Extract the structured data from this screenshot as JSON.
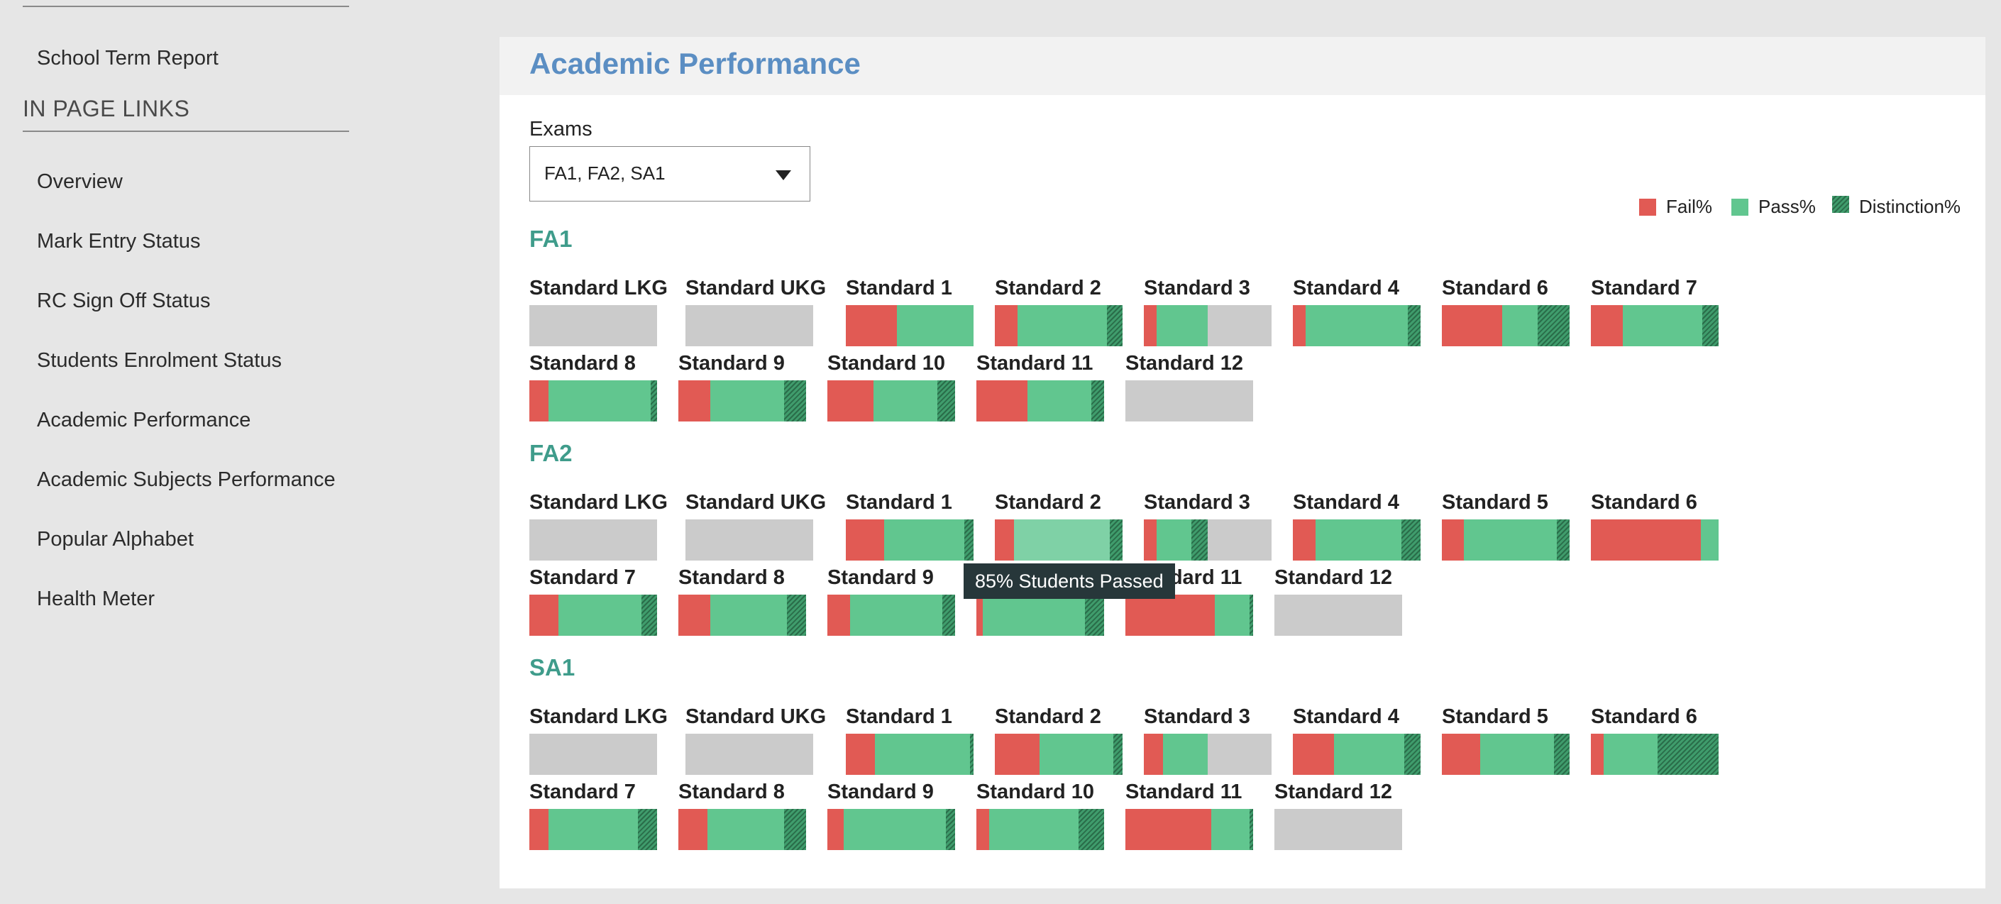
{
  "sidebar": {
    "school_term_report": "School Term Report",
    "in_page_heading": "IN PAGE LINKS",
    "links": [
      "Overview",
      "Mark Entry Status",
      "RC Sign Off Status",
      "Students Enrolment Status",
      "Academic Performance",
      "Academic Subjects Performance",
      "Popular Alphabet",
      "Health Meter"
    ]
  },
  "panel": {
    "title": "Academic Performance",
    "exams_label": "Exams",
    "exams_value": "FA1, FA2, SA1"
  },
  "legend": {
    "fail": "Fail%",
    "pass": "Pass%",
    "distinction": "Distinction%"
  },
  "colors": {
    "fail": "#e15a54",
    "pass": "#61c68f",
    "distinction": "#3f9c6c",
    "no_data": "#cbcbcb",
    "title": "#5b8ec3",
    "section": "#3f9c8b"
  },
  "tooltip": {
    "text": "85% Students Passed"
  },
  "sections": [
    {
      "name": "FA1",
      "standards": [
        {
          "label": "Standard LKG",
          "fail": 0,
          "pass": 0,
          "distinction": 0
        },
        {
          "label": "Standard UKG",
          "fail": 0,
          "pass": 0,
          "distinction": 0
        },
        {
          "label": "Standard 1",
          "fail": 40,
          "pass": 60,
          "distinction": 0
        },
        {
          "label": "Standard 2",
          "fail": 18,
          "pass": 70,
          "distinction": 12
        },
        {
          "label": "Standard 3",
          "fail": 10,
          "pass": 40,
          "distinction": 0
        },
        {
          "label": "Standard 4",
          "fail": 10,
          "pass": 80,
          "distinction": 10
        },
        {
          "label": "Standard 6",
          "fail": 47,
          "pass": 28,
          "distinction": 25
        },
        {
          "label": "Standard 7",
          "fail": 25,
          "pass": 62,
          "distinction": 13
        },
        {
          "label": "Standard 8",
          "fail": 15,
          "pass": 80,
          "distinction": 5
        },
        {
          "label": "Standard 9",
          "fail": 25,
          "pass": 58,
          "distinction": 17
        },
        {
          "label": "Standard 10",
          "fail": 36,
          "pass": 50,
          "distinction": 14
        },
        {
          "label": "Standard 11",
          "fail": 40,
          "pass": 50,
          "distinction": 10
        },
        {
          "label": "Standard 12",
          "fail": 0,
          "pass": 0,
          "distinction": 0
        }
      ]
    },
    {
      "name": "FA2",
      "standards": [
        {
          "label": "Standard LKG",
          "fail": 0,
          "pass": 0,
          "distinction": 0
        },
        {
          "label": "Standard UKG",
          "fail": 0,
          "pass": 0,
          "distinction": 0
        },
        {
          "label": "Standard 1",
          "fail": 30,
          "pass": 63,
          "distinction": 7
        },
        {
          "label": "Standard 2",
          "fail": 15,
          "pass": 75,
          "distinction": 10
        },
        {
          "label": "Standard 3",
          "fail": 10,
          "pass": 27,
          "distinction": 13
        },
        {
          "label": "Standard 4",
          "fail": 18,
          "pass": 67,
          "distinction": 15
        },
        {
          "label": "Standard 5",
          "fail": 17,
          "pass": 73,
          "distinction": 10
        },
        {
          "label": "Standard 6",
          "fail": 86,
          "pass": 14,
          "distinction": 0
        },
        {
          "label": "Standard 7",
          "fail": 23,
          "pass": 65,
          "distinction": 12
        },
        {
          "label": "Standard 8",
          "fail": 25,
          "pass": 60,
          "distinction": 15
        },
        {
          "label": "Standard 9",
          "fail": 18,
          "pass": 72,
          "distinction": 10
        },
        {
          "label": "Standard 10",
          "fail": 5,
          "pass": 80,
          "distinction": 15
        },
        {
          "label": "Standard 11",
          "fail": 70,
          "pass": 27,
          "distinction": 3
        },
        {
          "label": "Standard 12",
          "fail": 0,
          "pass": 0,
          "distinction": 0
        }
      ]
    },
    {
      "name": "SA1",
      "standards": [
        {
          "label": "Standard LKG",
          "fail": 0,
          "pass": 0,
          "distinction": 0
        },
        {
          "label": "Standard UKG",
          "fail": 0,
          "pass": 0,
          "distinction": 0
        },
        {
          "label": "Standard 1",
          "fail": 23,
          "pass": 74,
          "distinction": 3
        },
        {
          "label": "Standard 2",
          "fail": 35,
          "pass": 58,
          "distinction": 7
        },
        {
          "label": "Standard 3",
          "fail": 15,
          "pass": 35,
          "distinction": 0
        },
        {
          "label": "Standard 4",
          "fail": 32,
          "pass": 55,
          "distinction": 13
        },
        {
          "label": "Standard 5",
          "fail": 30,
          "pass": 58,
          "distinction": 12
        },
        {
          "label": "Standard 6",
          "fail": 10,
          "pass": 42,
          "distinction": 48
        },
        {
          "label": "Standard 7",
          "fail": 15,
          "pass": 70,
          "distinction": 15
        },
        {
          "label": "Standard 8",
          "fail": 23,
          "pass": 60,
          "distinction": 17
        },
        {
          "label": "Standard 9",
          "fail": 13,
          "pass": 80,
          "distinction": 7
        },
        {
          "label": "Standard 10",
          "fail": 10,
          "pass": 70,
          "distinction": 20
        },
        {
          "label": "Standard 11",
          "fail": 67,
          "pass": 30,
          "distinction": 3
        },
        {
          "label": "Standard 12",
          "fail": 0,
          "pass": 0,
          "distinction": 0
        }
      ]
    }
  ]
}
